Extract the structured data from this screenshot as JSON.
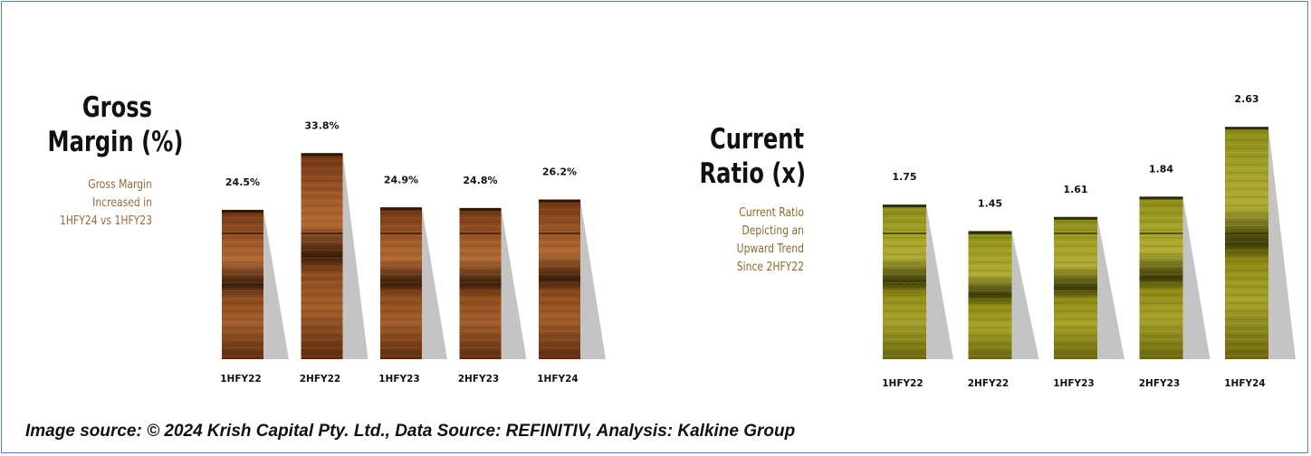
{
  "colors": {
    "brown_wood": "#8b4a1c",
    "olive_wood": "#8f8a14",
    "shadow": "#c4c4c4",
    "border": "#4f81bd"
  },
  "charts": {
    "gross_margin": {
      "title_lines": [
        "Gross",
        "Margin (%)"
      ],
      "note_lines": [
        "Gross Margin",
        "Increased in",
        "1HFY24 vs 1HFY23"
      ]
    },
    "current_ratio": {
      "title_lines": [
        "Current",
        "Ratio (x)"
      ],
      "note_lines": [
        "Current Ratio",
        "Depicting an",
        "Upward Trend",
        "Since 2HFY22"
      ]
    }
  },
  "footer": {
    "text": "Image source: © 2024 Krish Capital Pty. Ltd., Data Source: REFINITIV, Analysis: Kalkine Group"
  },
  "chart_data": [
    {
      "type": "bar",
      "title": "Gross Margin (%)",
      "categories": [
        "1HFY22",
        "2HFY22",
        "1HFY23",
        "2HFY23",
        "1HFY24"
      ],
      "values": [
        24.5,
        33.8,
        24.9,
        24.8,
        26.2
      ],
      "value_labels": [
        "24.5%",
        "33.8%",
        "24.9%",
        "24.8%",
        "26.2%"
      ],
      "ylim": [
        0,
        38
      ],
      "grid": false,
      "legend": "none"
    },
    {
      "type": "bar",
      "title": "Current Ratio (x)",
      "categories": [
        "1HFY22",
        "2HFY22",
        "1HFY23",
        "2HFY23",
        "1HFY24"
      ],
      "values": [
        1.75,
        1.45,
        1.61,
        1.84,
        2.63
      ],
      "value_labels": [
        "1.75",
        "1.45",
        "1.61",
        "1.84",
        "2.63"
      ],
      "ylim": [
        0,
        2.95
      ],
      "grid": false,
      "legend": "none"
    }
  ]
}
